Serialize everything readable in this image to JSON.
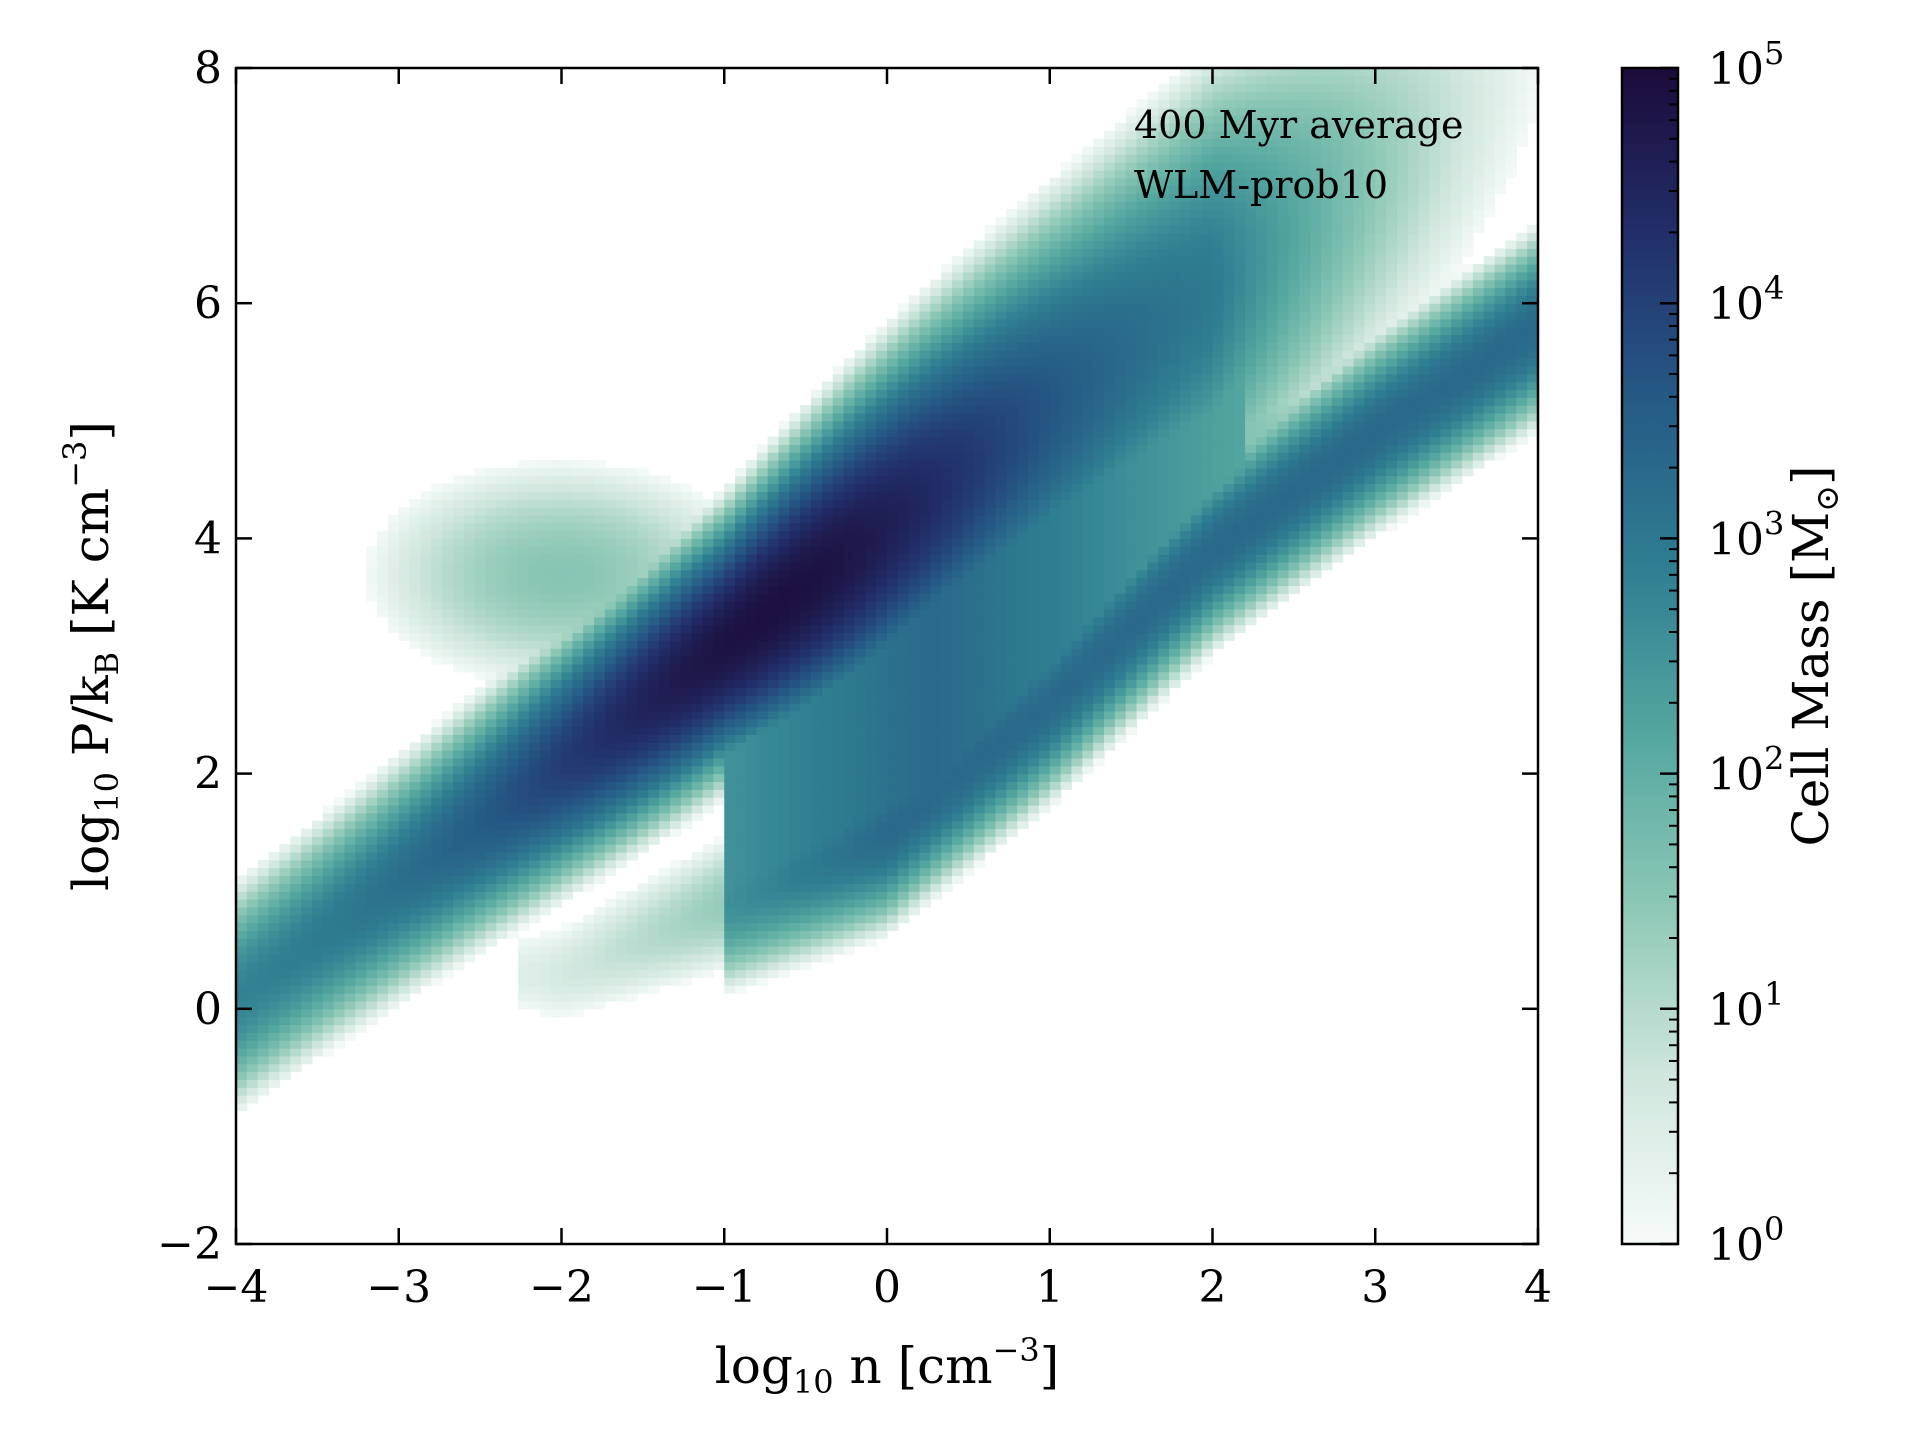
{
  "chart_data": {
    "type": "heatmap",
    "title": "",
    "xlabel": {
      "base": "log",
      "sub": "10",
      "rest": " n [cm",
      "sup": "−3",
      "close": "]"
    },
    "ylabel": {
      "base": "log",
      "sub": "10",
      "mid": " P/k",
      "sub2": "B",
      "rest": " [K cm",
      "sup": "−3",
      "close": "]"
    },
    "xlim": [
      -4,
      4
    ],
    "ylim": [
      -2,
      8
    ],
    "xticks": [
      -4,
      -3,
      -2,
      -1,
      0,
      1,
      2,
      3,
      4
    ],
    "yticks": [
      -2,
      0,
      2,
      4,
      6,
      8
    ],
    "xtick_labels": [
      "−4",
      "−3",
      "−2",
      "−1",
      "0",
      "1",
      "2",
      "3",
      "4"
    ],
    "ytick_labels": [
      "−2",
      "0",
      "2",
      "4",
      "6",
      "8"
    ],
    "annotations": [
      "400 Myr average",
      "WLM-prob10"
    ],
    "colorbar": {
      "label": "Cell Mass [M",
      "label_sub": "⊙",
      "label_close": "]",
      "scale": "log",
      "range": [
        1,
        100000
      ],
      "ticks": [
        {
          "base": "10",
          "exp": "0"
        },
        {
          "base": "10",
          "exp": "1"
        },
        {
          "base": "10",
          "exp": "2"
        },
        {
          "base": "10",
          "exp": "3"
        },
        {
          "base": "10",
          "exp": "4"
        },
        {
          "base": "10",
          "exp": "5"
        }
      ],
      "colormap": [
        "#f7fbf9",
        "#cfe6dd",
        "#8ec8b6",
        "#55a8a0",
        "#2f7f92",
        "#265b86",
        "#222f6a",
        "#1c0b3a"
      ]
    },
    "components": [
      {
        "name": "main diagonal band",
        "x_range": [
          -4,
          4
        ],
        "y_at_x_min": 0.1,
        "y_at_x_max": 8.0,
        "slope": 1.0,
        "width_dex": 0.45,
        "peak_log_mass": 4.9
      },
      {
        "name": "lower curved branch",
        "x_range": [
          -2,
          4
        ],
        "points": [
          [
            -2,
            0.3
          ],
          [
            -1,
            0.9
          ],
          [
            0,
            1.5
          ],
          [
            1,
            2.6
          ],
          [
            2,
            3.9
          ],
          [
            3,
            4.9
          ],
          [
            4,
            5.8
          ]
        ],
        "width_dex": 0.35,
        "peak_log_mass": 3.3
      },
      {
        "name": "upper diffuse cloud",
        "center": [
          -2.0,
          3.7
        ],
        "peak_log_mass": 1.5
      },
      {
        "name": "high-density warm cloud",
        "center": [
          2.0,
          4.9
        ],
        "peak_log_mass": 1.6
      }
    ]
  }
}
